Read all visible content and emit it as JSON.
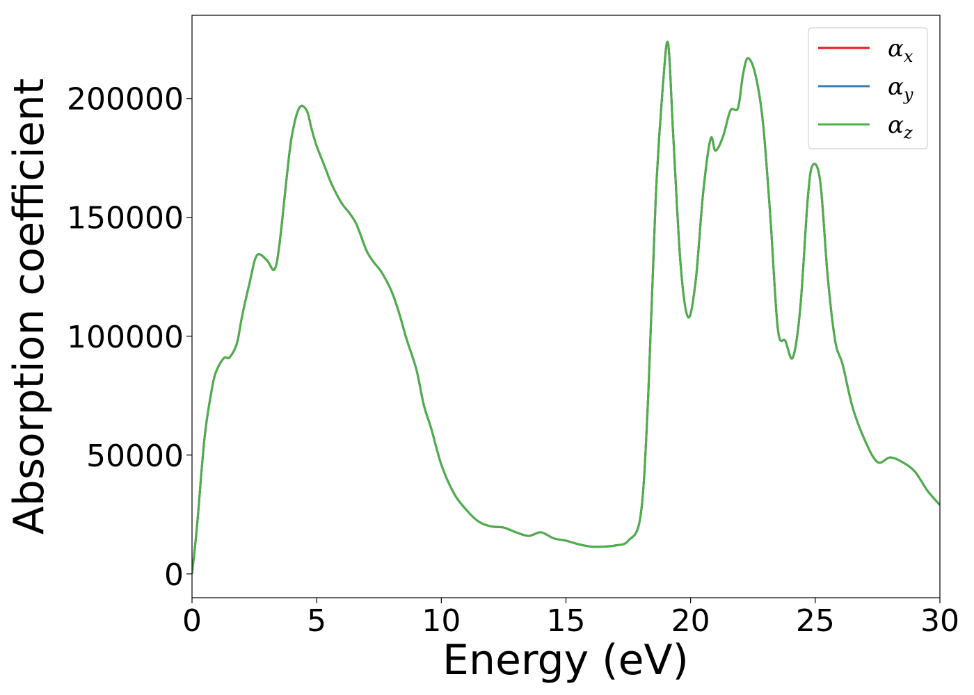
{
  "chart_data": {
    "type": "line",
    "title": "",
    "xlabel": "Energy (eV)",
    "ylabel": "Absorption coefficient",
    "xlim": [
      0,
      30
    ],
    "ylim": [
      -10000,
      235000
    ],
    "xticks": [
      0,
      5,
      10,
      15,
      20,
      25,
      30
    ],
    "yticks": [
      0,
      50000,
      100000,
      150000,
      200000
    ],
    "grid": false,
    "legend_position": "top-right",
    "x": [
      0,
      0.2,
      0.5,
      0.8,
      1.0,
      1.3,
      1.5,
      1.8,
      2.0,
      2.3,
      2.6,
      3.0,
      3.3,
      3.5,
      3.8,
      4.0,
      4.3,
      4.6,
      4.8,
      5.0,
      5.3,
      5.6,
      6.0,
      6.3,
      6.6,
      7.0,
      7.3,
      7.6,
      8.0,
      8.3,
      8.6,
      9.0,
      9.3,
      9.6,
      10.0,
      10.5,
      11.0,
      11.5,
      12.0,
      12.5,
      13.0,
      13.5,
      14.0,
      14.5,
      15.0,
      15.5,
      16.0,
      16.5,
      17.0,
      17.5,
      18.0,
      18.3,
      18.6,
      18.9,
      19.1,
      19.3,
      19.6,
      19.9,
      20.2,
      20.5,
      20.8,
      21.0,
      21.3,
      21.6,
      21.9,
      22.1,
      22.3,
      22.6,
      22.9,
      23.2,
      23.5,
      23.8,
      24.1,
      24.4,
      24.7,
      24.9,
      25.2,
      25.5,
      25.8,
      26.1,
      26.5,
      27.0,
      27.5,
      28.0,
      28.5,
      29.0,
      29.5,
      30.0
    ],
    "series": [
      {
        "name": "α_x",
        "color": "#e41a1c",
        "values": [
          0,
          20000,
          57000,
          78000,
          86000,
          91000,
          91000,
          97000,
          108000,
          122000,
          134000,
          132000,
          128000,
          138000,
          167000,
          184000,
          196000,
          195000,
          187000,
          180000,
          172000,
          164000,
          156000,
          152000,
          147000,
          136000,
          131000,
          127000,
          119000,
          110000,
          99000,
          86000,
          71000,
          61000,
          46000,
          34000,
          27000,
          22000,
          20000,
          19500,
          17500,
          16000,
          17500,
          15000,
          14000,
          12500,
          11500,
          11500,
          12000,
          14000,
          25000,
          75000,
          158000,
          207000,
          223000,
          185000,
          130000,
          108000,
          123000,
          160000,
          183000,
          178000,
          184000,
          195000,
          196000,
          210000,
          217000,
          210000,
          190000,
          150000,
          103000,
          98000,
          91000,
          112000,
          158000,
          172000,
          165000,
          125000,
          98000,
          88000,
          70000,
          56000,
          47000,
          49000,
          47000,
          43000,
          35000,
          29000
        ]
      },
      {
        "name": "α_y",
        "color": "#377eb8",
        "values": [
          0,
          20000,
          57000,
          78000,
          86000,
          91000,
          91000,
          97000,
          108000,
          122000,
          134000,
          132000,
          128000,
          138000,
          167000,
          184000,
          196000,
          195000,
          187000,
          180000,
          172000,
          164000,
          156000,
          152000,
          147000,
          136000,
          131000,
          127000,
          119000,
          110000,
          99000,
          86000,
          71000,
          61000,
          46000,
          34000,
          27000,
          22000,
          20000,
          19500,
          17500,
          16000,
          17500,
          15000,
          14000,
          12500,
          11500,
          11500,
          12000,
          14000,
          25000,
          75000,
          158000,
          207000,
          223000,
          185000,
          130000,
          108000,
          123000,
          160000,
          183000,
          178000,
          184000,
          195000,
          196000,
          210000,
          217000,
          210000,
          190000,
          150000,
          103000,
          98000,
          91000,
          112000,
          158000,
          172000,
          165000,
          125000,
          98000,
          88000,
          70000,
          56000,
          47000,
          49000,
          47000,
          43000,
          35000,
          29000
        ]
      },
      {
        "name": "α_z",
        "color": "#4daf4a",
        "values": [
          0,
          20000,
          57000,
          78000,
          86000,
          91000,
          91000,
          97000,
          108000,
          122000,
          134000,
          132000,
          128000,
          138000,
          167000,
          184000,
          196000,
          195000,
          187000,
          180000,
          172000,
          164000,
          156000,
          152000,
          147000,
          136000,
          131000,
          127000,
          119000,
          110000,
          99000,
          86000,
          71000,
          61000,
          46000,
          34000,
          27000,
          22000,
          20000,
          19500,
          17500,
          16000,
          17500,
          15000,
          14000,
          12500,
          11500,
          11500,
          12000,
          14000,
          25000,
          75000,
          158000,
          207000,
          223000,
          185000,
          130000,
          108000,
          123000,
          160000,
          183000,
          178000,
          184000,
          195000,
          196000,
          210000,
          217000,
          210000,
          190000,
          150000,
          103000,
          98000,
          91000,
          112000,
          158000,
          172000,
          165000,
          125000,
          98000,
          88000,
          70000,
          56000,
          47000,
          49000,
          47000,
          43000,
          35000,
          29000
        ]
      }
    ],
    "legend": [
      {
        "base": "α",
        "sub": "x"
      },
      {
        "base": "α",
        "sub": "y"
      },
      {
        "base": "α",
        "sub": "z"
      }
    ]
  }
}
